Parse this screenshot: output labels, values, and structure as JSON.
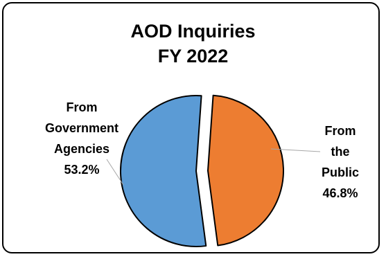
{
  "chart_data": {
    "type": "pie",
    "title": [
      "AOD Inquiries",
      "FY 2022"
    ],
    "slices": [
      {
        "label": [
          "From",
          "the",
          "Public",
          "46.8%"
        ],
        "value": 46.8,
        "color": "#ED7D31",
        "exploded": true
      },
      {
        "label": [
          "From",
          "Government",
          "Agencies",
          "53.2%"
        ],
        "value": 53.2,
        "color": "#5B9BD5",
        "exploded": false
      }
    ]
  }
}
